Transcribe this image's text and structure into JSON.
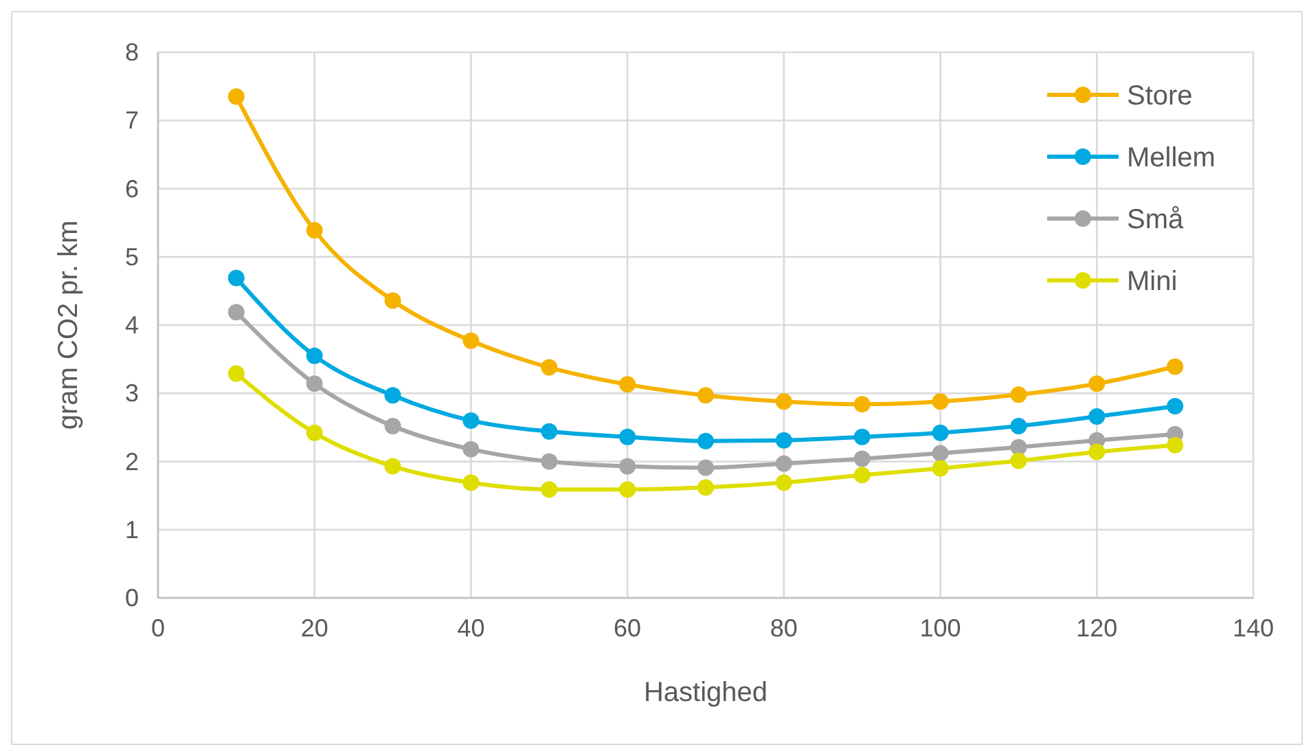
{
  "chart_data": {
    "type": "line",
    "xlabel": "Hastighed",
    "ylabel": "gram CO2 pr. km",
    "x": [
      10,
      20,
      30,
      40,
      50,
      60,
      70,
      80,
      90,
      100,
      110,
      120,
      130
    ],
    "xlim": [
      0,
      140
    ],
    "xticks": [
      0,
      20,
      40,
      60,
      80,
      100,
      120,
      140
    ],
    "ylim": [
      0,
      8
    ],
    "yticks": [
      0,
      1,
      2,
      3,
      4,
      5,
      6,
      7,
      8
    ],
    "grid": true,
    "legend": "top right",
    "marker": "circle",
    "line_style": "solid",
    "series": [
      {
        "name": "Store",
        "color": "#f5b300",
        "values": [
          7.35,
          5.39,
          4.36,
          3.77,
          3.38,
          3.13,
          2.97,
          2.88,
          2.84,
          2.88,
          2.98,
          3.14,
          3.39
        ]
      },
      {
        "name": "Mellem",
        "color": "#00a9e0",
        "values": [
          4.69,
          3.55,
          2.97,
          2.6,
          2.44,
          2.36,
          2.3,
          2.31,
          2.36,
          2.42,
          2.52,
          2.66,
          2.81
        ]
      },
      {
        "name": "Små",
        "color": "#a6a6a6",
        "values": [
          4.19,
          3.14,
          2.52,
          2.18,
          2.0,
          1.93,
          1.91,
          1.97,
          2.04,
          2.12,
          2.21,
          2.31,
          2.4
        ]
      },
      {
        "name": "Mini",
        "color": "#dede00",
        "values": [
          3.29,
          2.42,
          1.93,
          1.69,
          1.59,
          1.59,
          1.62,
          1.69,
          1.8,
          1.9,
          2.01,
          2.14,
          2.24
        ]
      }
    ]
  }
}
